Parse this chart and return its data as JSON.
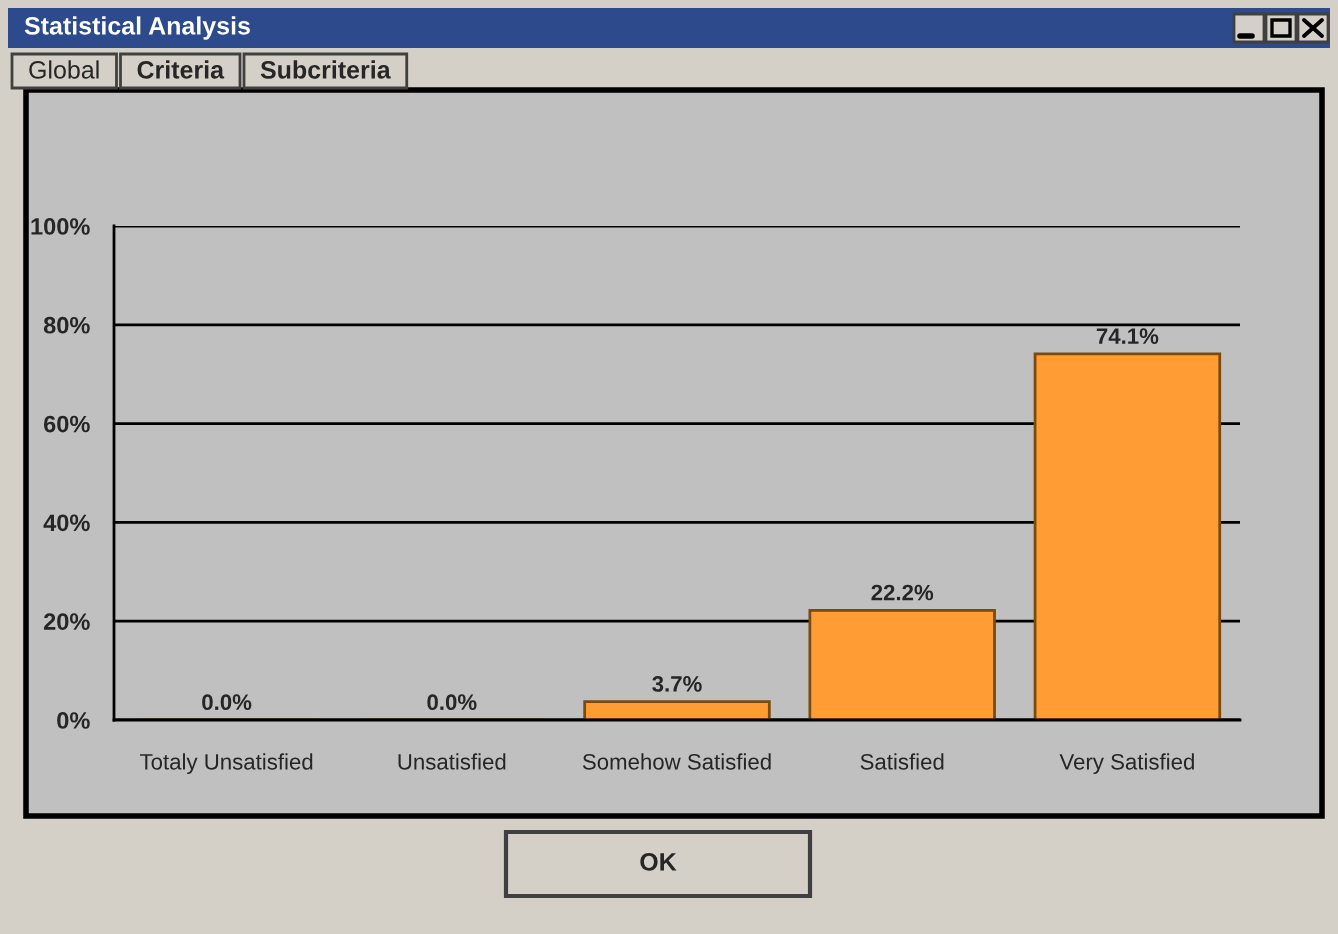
{
  "chart_data": {
    "type": "bar",
    "title": "Statistical Analysis",
    "annotations": [
      "Global",
      "Criteria",
      "Subcriteria",
      "OK"
    ],
    "categories": [
      "Totaly Unsatisfied",
      "Unsatisfied",
      "Somehow Satisfied",
      "Satisfied",
      "Very Satisfied"
    ],
    "values": [
      0,
      0,
      3.7,
      22.2,
      74.1
    ],
    "value_labels": [
      "0.0%",
      "0.0%",
      "3.7%",
      "22.2%",
      "74.1%"
    ],
    "color": "#ff9c33",
    "ylim": [
      0,
      100
    ],
    "yticks": [
      {
        "value": 0,
        "label": "0%"
      },
      {
        "value": 20,
        "label": "20%"
      },
      {
        "value": 40,
        "label": "40%"
      },
      {
        "value": 60,
        "label": "60%"
      },
      {
        "value": 80,
        "label": "80%"
      },
      {
        "value": 100,
        "label": "100%"
      }
    ],
    "grid": "y"
  }
}
